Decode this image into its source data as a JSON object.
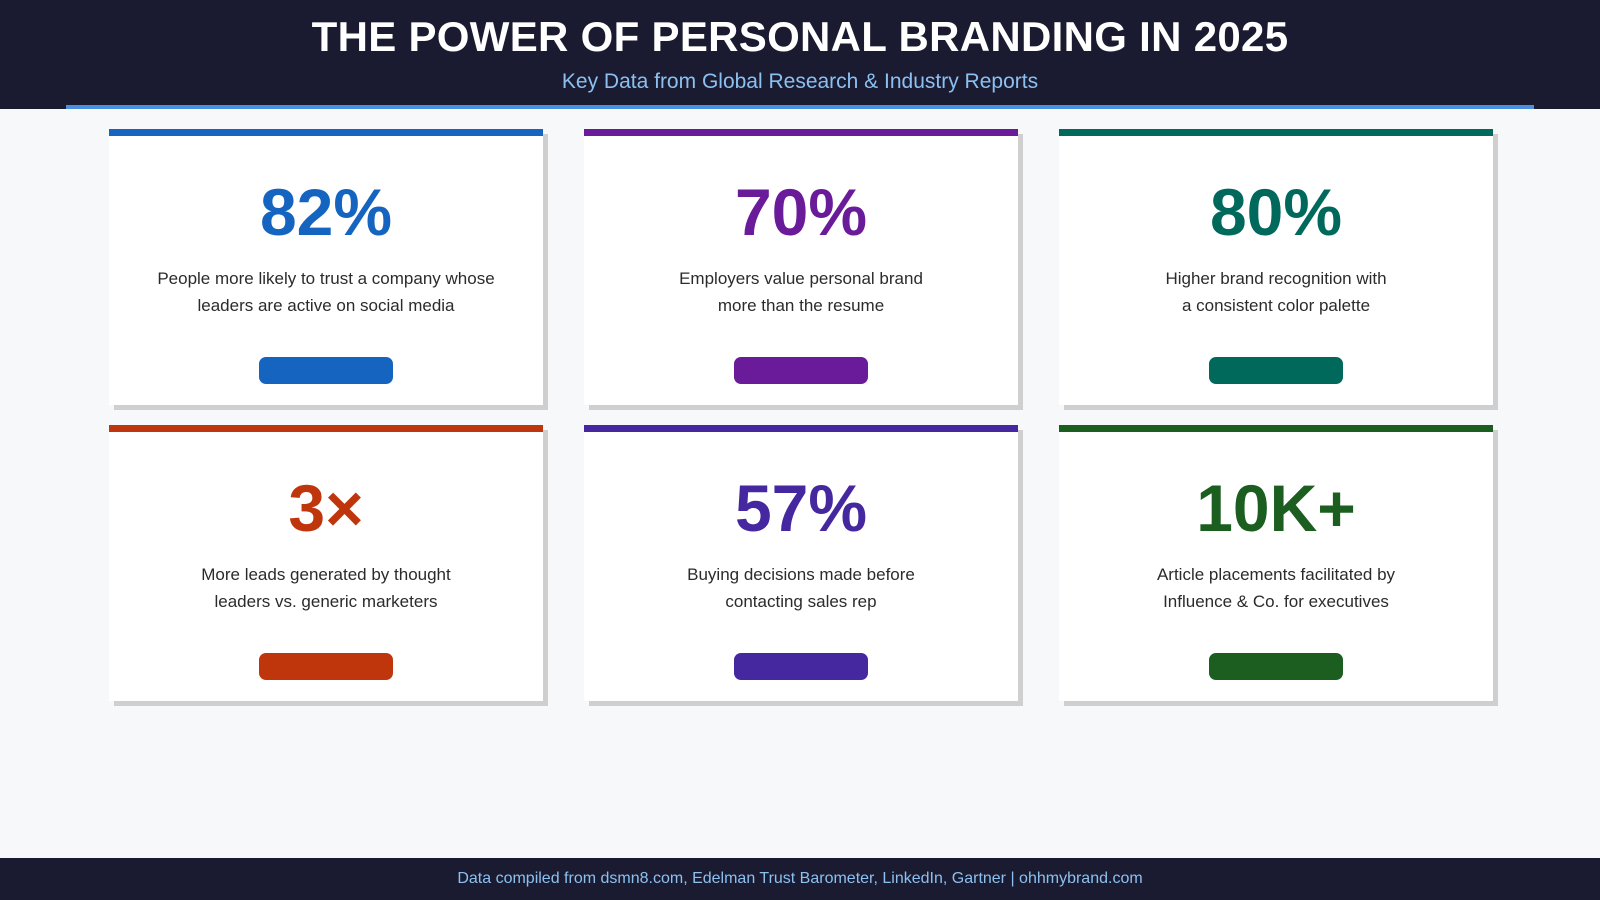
{
  "header": {
    "title": "THE POWER OF PERSONAL BRANDING IN 2025",
    "subtitle": "Key Data from Global Research & Industry Reports"
  },
  "colors": {
    "header_bg": "#1a1b30",
    "accent_rule": "#4a90e2",
    "subtitle": "#8cc0f0"
  },
  "cards": [
    {
      "stat": "82%",
      "desc_line1": "People more likely to trust a company whose",
      "desc_line2": "leaders are active on social media",
      "color": "#1565c0"
    },
    {
      "stat": "70%",
      "desc_line1": "Employers value personal brand",
      "desc_line2": "more than the resume",
      "color": "#6a1b9a"
    },
    {
      "stat": "80%",
      "desc_line1": "Higher brand recognition with",
      "desc_line2": "a consistent color palette",
      "color": "#00695c"
    },
    {
      "stat": "3×",
      "desc_line1": "More leads generated by thought",
      "desc_line2": "leaders vs. generic marketers",
      "color": "#bf360c"
    },
    {
      "stat": "57%",
      "desc_line1": "Buying decisions made before",
      "desc_line2": "contacting sales rep",
      "color": "#4527a0"
    },
    {
      "stat": "10K+",
      "desc_line1": "Article placements facilitated by",
      "desc_line2": "Influence & Co. for executives",
      "color": "#1b5e20"
    }
  ],
  "footer": {
    "text": "Data compiled from dsmn8.com, Edelman Trust Barometer, LinkedIn, Gartner | ohhmybrand.com"
  }
}
